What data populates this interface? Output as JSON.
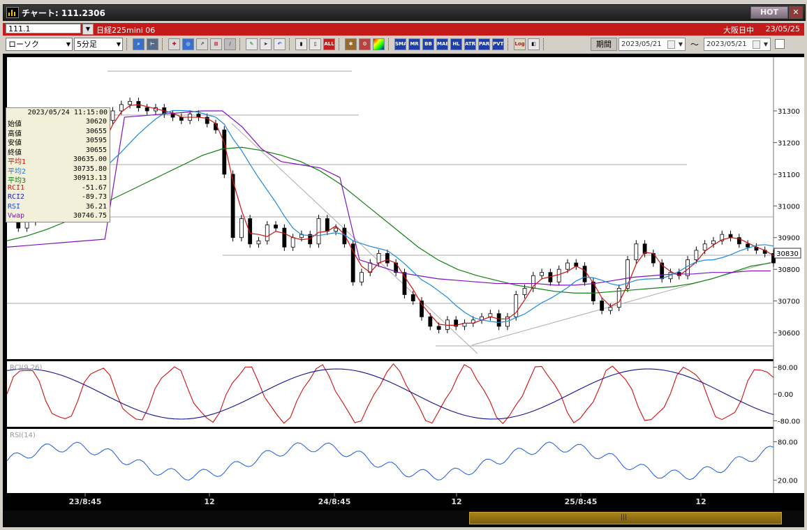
{
  "window": {
    "title": "チャート: 111.2306",
    "hot_label": "HOT",
    "close_glyph": "✕",
    "app_icon": "chart-app-icon"
  },
  "infobar": {
    "code": "111.1",
    "instrument": "日経225mini 06",
    "session": "大阪日中",
    "date": "23/05/25"
  },
  "toolbar": {
    "chart_type": "ローソク",
    "interval": "5分足",
    "period_label": "期間",
    "date_from": "2023/05/21",
    "date_tilde": "～",
    "date_to": "2023/05/21",
    "text_buttons": [
      "ALL",
      "SMA",
      "MR",
      "BB",
      "MAE",
      "HL",
      "ATR",
      "PARA",
      "PVT",
      "Log"
    ],
    "icons": [
      "zoom-icon",
      "cursor-icon",
      "crosshair-icon",
      "search-icon",
      "trend-icon",
      "grid-icon",
      "line-tool-icon",
      "select-arrow-icon",
      "undo-icon",
      "candle-icon",
      "bar-icon",
      "wrench-icon",
      "settings-icon",
      "color-icon",
      "split-icon"
    ]
  },
  "infobox": {
    "datetime": "2023/05/24  11:15:00",
    "rows": [
      {
        "label": "始値",
        "value": "30620",
        "color": "#000000"
      },
      {
        "label": "高値",
        "value": "30655",
        "color": "#000000"
      },
      {
        "label": "安値",
        "value": "30595",
        "color": "#000000"
      },
      {
        "label": "終値",
        "value": "30655",
        "color": "#000000"
      },
      {
        "label": "平均1",
        "value": "30635.00",
        "color": "#d01010"
      },
      {
        "label": "平均2",
        "value": "30735.80",
        "color": "#1a7ad8"
      },
      {
        "label": "平均3",
        "value": "30913.13",
        "color": "#107a10"
      },
      {
        "label": "RCI1",
        "value": "-51.67",
        "color": "#d01010"
      },
      {
        "label": "RCI2",
        "value": "-89.73",
        "color": "#2020c0"
      },
      {
        "label": "RSI",
        "value": "36.21",
        "color": "#1a4ad8"
      },
      {
        "label": "Vwap",
        "value": "30746.75",
        "color": "#8010c0"
      }
    ]
  },
  "chart_data": {
    "type": "line",
    "price_axis": {
      "ticks": [
        31300,
        31200,
        31100,
        31000,
        30900,
        30800,
        30700,
        30600
      ],
      "last_price_label": "30830"
    },
    "time_axis": {
      "labels": [
        "23/8:45",
        "12",
        "24/8:45",
        "12",
        "25/8:45",
        "12"
      ]
    },
    "rci_panel": {
      "label": "RCI(9,26)",
      "ticks": [
        "80.00",
        "0.00",
        "-80.00"
      ]
    },
    "rsi_panel": {
      "label": "RSI(14)",
      "ticks": [
        "80.00",
        "20.00"
      ]
    },
    "series_colors": {
      "ma1": "#d01010",
      "ma2": "#1a8ae0",
      "ma3": "#108010",
      "vwap": "#8010c0",
      "rci1": "#d01010",
      "rci2": "#101090",
      "rsi": "#1a5ae0"
    },
    "ma3": [
      30890,
      30905,
      30925,
      30950,
      30980,
      31010,
      31040,
      31070,
      31100,
      31130,
      31160,
      31180,
      31185,
      31175,
      31160,
      31140,
      31110,
      31070,
      31020,
      30970,
      30920,
      30870,
      30830,
      30800,
      30780,
      30765,
      30750,
      30740,
      30730,
      30725,
      30725,
      30730,
      30735,
      30740,
      30745,
      30755,
      30770,
      30790,
      30810,
      30820
    ],
    "vwap": [
      30870,
      30875,
      30880,
      30885,
      30890,
      30895,
      31280,
      31285,
      31290,
      31295,
      31300,
      31300,
      31250,
      31180,
      31140,
      31130,
      31120,
      31090,
      30830,
      30810,
      30790,
      30780,
      30770,
      30765,
      30760,
      30755,
      30755,
      30755,
      30750,
      30750,
      30755,
      30765,
      30775,
      30780,
      30785,
      30785,
      30790,
      30790,
      30795,
      30795
    ]
  },
  "scrollbar": {
    "grip": "|||"
  }
}
